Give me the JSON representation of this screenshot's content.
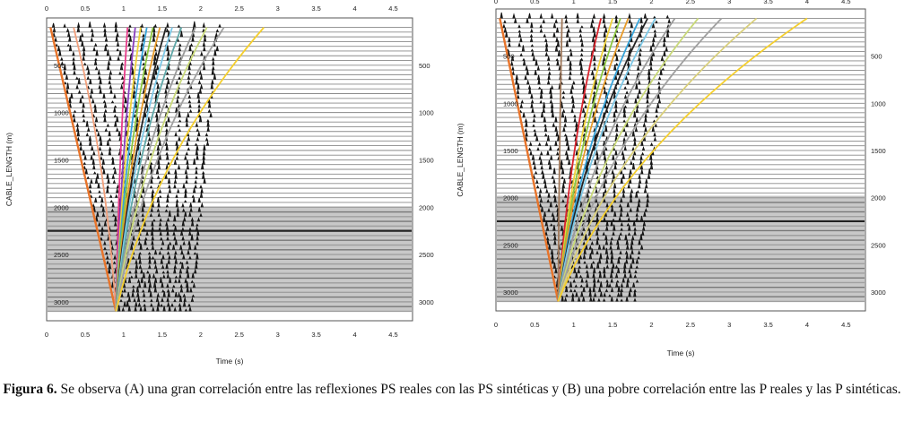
{
  "figure": {
    "caption_label": "Figura 6.",
    "caption_text": " Se observa (A) una gran correlación entre las reflexiones PS reales con las PS sintéticas y (B) una pobre correlación entre las P reales y las P sintéticas."
  },
  "chart_data": [
    {
      "type": "line",
      "panel": "A",
      "xlabel": "Time (s)",
      "ylabel": "CABLE_LENGTH (m)",
      "xlim": [
        0,
        4.75
      ],
      "ylim": [
        0,
        3200
      ],
      "y_reversed": true,
      "x_ticks": [
        "0",
        "0.5",
        "1",
        "1.5",
        "2",
        "2.5",
        "3",
        "3.5",
        "4",
        "4.5"
      ],
      "y_ticks": [
        "500",
        "1000",
        "1500",
        "2000",
        "2500",
        "3000"
      ],
      "apex": {
        "t": 0.9,
        "d": 3100
      },
      "first_break_top": {
        "t": 0.05,
        "d": 100
      },
      "curves": [
        {
          "color": "#e8742a",
          "t0": 0.05
        },
        {
          "color": "#f2a07c",
          "t0": 0.35
        },
        {
          "color": "#e93a8a",
          "t0": 1.05
        },
        {
          "color": "#8a3fbf",
          "t0": 1.15
        },
        {
          "color": "#f0d23a",
          "t0": 1.22
        },
        {
          "color": "#36a3d9",
          "t0": 1.3
        },
        {
          "color": "#8cc63f",
          "t0": 1.38
        },
        {
          "color": "#e89b2a",
          "t0": 1.47
        },
        {
          "color": "#222222",
          "t0": 1.55
        },
        {
          "color": "#7dc8e6",
          "t0": 1.63
        },
        {
          "color": "#5fa8a8",
          "t0": 1.75
        },
        {
          "color": "#9a9a9a",
          "t0": 1.93
        },
        {
          "color": "#c9d97a",
          "t0": 2.08
        },
        {
          "color": "#a0a0a0",
          "t0": 2.3
        },
        {
          "color": "#f5cf2d",
          "t0": 2.82
        }
      ]
    },
    {
      "type": "line",
      "panel": "B",
      "xlabel": "Time (s)",
      "ylabel": "CABLE_LENGTH (m)",
      "xlim": [
        0,
        4.75
      ],
      "ylim": [
        0,
        3200
      ],
      "y_reversed": true,
      "x_ticks": [
        "0",
        "0.5",
        "1",
        "1.5",
        "2",
        "2.5",
        "3",
        "3.5",
        "4",
        "4.5"
      ],
      "y_ticks": [
        "500",
        "1000",
        "1500",
        "2000",
        "2500",
        "3000"
      ],
      "apex": {
        "t": 0.8,
        "d": 3100
      },
      "first_break_top": {
        "t": 0.05,
        "d": 100
      },
      "curves": [
        {
          "color": "#e8742a",
          "t0": 0.05
        },
        {
          "color": "#a0785a",
          "t0": 0.85
        },
        {
          "color": "#d9232d",
          "t0": 1.35
        },
        {
          "color": "#f0d23a",
          "t0": 1.5
        },
        {
          "color": "#8cc63f",
          "t0": 1.6
        },
        {
          "color": "#e89b2a",
          "t0": 1.7
        },
        {
          "color": "#36a3d9",
          "t0": 1.85
        },
        {
          "color": "#222222",
          "t0": 1.95
        },
        {
          "color": "#7dc8e6",
          "t0": 2.05
        },
        {
          "color": "#9a9a9a",
          "t0": 2.3
        },
        {
          "color": "#c9d97a",
          "t0": 2.6
        },
        {
          "color": "#a0a0a0",
          "t0": 2.9
        },
        {
          "color": "#d9cf7a",
          "t0": 3.35
        },
        {
          "color": "#f5cf2d",
          "t0": 4.0
        }
      ]
    }
  ]
}
